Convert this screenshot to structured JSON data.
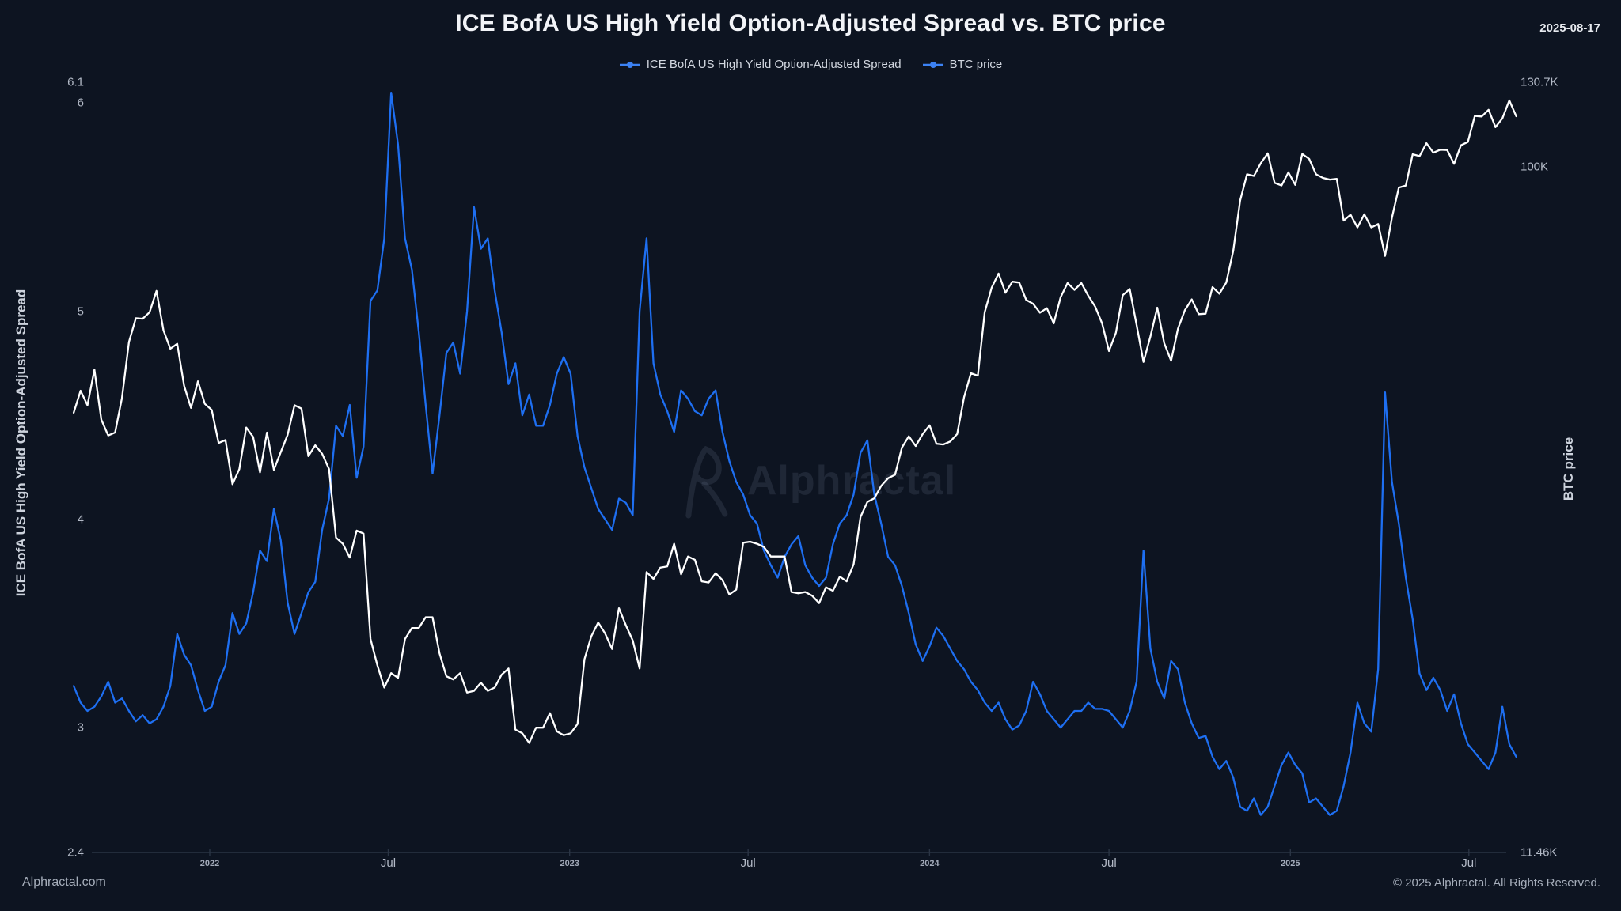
{
  "header": {
    "title": "ICE BofA US High Yield Option-Adjusted Spread vs. BTC price",
    "date_label": "2025-08-17"
  },
  "legend": [
    {
      "label": "ICE BofA US High Yield Option-Adjusted Spread",
      "marker_color": "#3c82f4"
    },
    {
      "label": "BTC price",
      "marker_color": "#3c82f4"
    }
  ],
  "watermark": {
    "text": "Alphractal",
    "logo": "alphractal-logo"
  },
  "footer": {
    "left": "Alphractal.com",
    "right": "© 2025 Alphractal. All Rights Reserved."
  },
  "colors": {
    "background": "#0d1421",
    "spread_line": "#1e6ff2",
    "btc_line": "#ffffff",
    "axis_line": "#2a3444",
    "axis_text": "#b3bac7",
    "watermark": "rgba(140,155,182,0.14)"
  },
  "chart_data": {
    "type": "line",
    "title": "ICE BofA US High Yield Option-Adjusted Spread vs. BTC price",
    "legend_position": "top",
    "grid": false,
    "x_axis": {
      "type": "datetime",
      "range": [
        "2021-08-16",
        "2025-08-18"
      ],
      "ticks": [
        {
          "label": "2022",
          "date": "2022-01-01",
          "style": "year"
        },
        {
          "label": "Jul",
          "date": "2022-07-01",
          "style": "month"
        },
        {
          "label": "2023",
          "date": "2023-01-01",
          "style": "year"
        },
        {
          "label": "Jul",
          "date": "2023-07-01",
          "style": "month"
        },
        {
          "label": "2024",
          "date": "2024-01-01",
          "style": "year"
        },
        {
          "label": "Jul",
          "date": "2024-07-01",
          "style": "month"
        },
        {
          "label": "2025",
          "date": "2025-01-01",
          "style": "year"
        },
        {
          "label": "Jul",
          "date": "2025-07-01",
          "style": "month"
        }
      ]
    },
    "y_axis_left": {
      "label": "ICE BofA US High Yield Option-Adjusted Spread",
      "scale": "linear",
      "min": 2.4,
      "max": 6.1,
      "tick_labels": [
        "6.1",
        "6",
        "5",
        "4",
        "3",
        "2.4"
      ],
      "tick_values": [
        6.1,
        6,
        5,
        4,
        3,
        2.4
      ]
    },
    "y_axis_right": {
      "label": "BTC price",
      "scale": "log",
      "min": 11460,
      "max": 130700,
      "tick_labels": [
        "130.7K",
        "100K",
        "11.46K"
      ],
      "tick_values": [
        130700,
        100000,
        11460
      ]
    },
    "series": [
      {
        "name": "ICE BofA US High Yield Option-Adjusted Spread",
        "axis": "left",
        "unit": "percent",
        "color": "#1e6ff2",
        "start": "2021-08-16",
        "interval_days": 7,
        "values": [
          3.2,
          3.12,
          3.08,
          3.1,
          3.15,
          3.22,
          3.12,
          3.14,
          3.08,
          3.03,
          3.06,
          3.02,
          3.04,
          3.1,
          3.2,
          3.45,
          3.35,
          3.3,
          3.18,
          3.08,
          3.1,
          3.22,
          3.3,
          3.55,
          3.45,
          3.5,
          3.65,
          3.85,
          3.8,
          4.05,
          3.9,
          3.6,
          3.45,
          3.55,
          3.65,
          3.7,
          3.95,
          4.1,
          4.45,
          4.4,
          4.55,
          4.2,
          4.35,
          5.05,
          5.1,
          5.35,
          6.05,
          5.8,
          5.35,
          5.2,
          4.9,
          4.55,
          4.22,
          4.5,
          4.8,
          4.85,
          4.7,
          5.0,
          5.5,
          5.3,
          5.35,
          5.1,
          4.9,
          4.65,
          4.75,
          4.5,
          4.6,
          4.45,
          4.45,
          4.55,
          4.7,
          4.78,
          4.7,
          4.4,
          4.25,
          4.15,
          4.05,
          4.0,
          3.95,
          4.1,
          4.08,
          4.02,
          5.0,
          5.35,
          4.75,
          4.6,
          4.52,
          4.42,
          4.62,
          4.58,
          4.52,
          4.5,
          4.58,
          4.62,
          4.42,
          4.28,
          4.18,
          4.12,
          4.02,
          3.98,
          3.85,
          3.78,
          3.72,
          3.82,
          3.88,
          3.92,
          3.78,
          3.72,
          3.68,
          3.72,
          3.88,
          3.98,
          4.02,
          4.12,
          4.32,
          4.38,
          4.12,
          3.98,
          3.82,
          3.78,
          3.68,
          3.55,
          3.4,
          3.32,
          3.39,
          3.48,
          3.44,
          3.38,
          3.32,
          3.28,
          3.22,
          3.18,
          3.12,
          3.08,
          3.12,
          3.04,
          2.99,
          3.01,
          3.08,
          3.22,
          3.16,
          3.08,
          3.04,
          3.0,
          3.04,
          3.08,
          3.08,
          3.12,
          3.09,
          3.09,
          3.08,
          3.04,
          3.0,
          3.08,
          3.22,
          3.85,
          3.38,
          3.22,
          3.14,
          3.32,
          3.28,
          3.12,
          3.02,
          2.95,
          2.96,
          2.86,
          2.8,
          2.84,
          2.76,
          2.62,
          2.6,
          2.66,
          2.58,
          2.62,
          2.72,
          2.82,
          2.88,
          2.82,
          2.78,
          2.64,
          2.66,
          2.62,
          2.58,
          2.6,
          2.72,
          2.88,
          3.12,
          3.02,
          2.98,
          3.28,
          4.61,
          4.18,
          3.98,
          3.72,
          3.52,
          3.26,
          3.18,
          3.24,
          3.18,
          3.08,
          3.16,
          3.02,
          2.92,
          2.88,
          2.84,
          2.8,
          2.88,
          3.1,
          2.92,
          2.86
        ]
      },
      {
        "name": "BTC price",
        "axis": "right",
        "unit": "kUSD",
        "color": "#ffffff",
        "start": "2021-08-16",
        "interval_days": 7,
        "values": [
          46.0,
          49.3,
          47.1,
          52.7,
          45.0,
          42.8,
          43.2,
          48.2,
          57.5,
          62.0,
          61.9,
          63.2,
          67.6,
          59.7,
          56.3,
          57.2,
          50.1,
          46.7,
          50.8,
          47.3,
          46.4,
          41.8,
          42.2,
          36.7,
          38.5,
          43.9,
          42.6,
          38.1,
          43.2,
          38.4,
          40.6,
          42.9,
          47.1,
          46.6,
          40.1,
          41.5,
          40.4,
          38.5,
          31.0,
          30.4,
          29.1,
          31.7,
          31.4,
          22.5,
          20.7,
          19.3,
          20.2,
          19.9,
          22.5,
          23.3,
          23.3,
          24.1,
          24.1,
          21.5,
          20.0,
          19.8,
          20.2,
          19.0,
          19.1,
          19.6,
          19.1,
          19.3,
          20.1,
          20.5,
          16.9,
          16.7,
          16.2,
          17.0,
          17.0,
          17.8,
          16.8,
          16.6,
          16.7,
          17.2,
          21.1,
          22.7,
          23.7,
          22.9,
          21.8,
          24.8,
          23.5,
          22.4,
          20.5,
          27.8,
          27.2,
          28.2,
          28.3,
          30.4,
          27.6,
          29.2,
          28.9,
          27.0,
          26.9,
          27.7,
          27.1,
          25.9,
          26.3,
          30.5,
          30.6,
          30.4,
          30.1,
          29.2,
          29.2,
          29.2,
          26.1,
          26.0,
          26.1,
          25.8,
          25.2,
          26.5,
          26.2,
          27.4,
          27.0,
          28.5,
          33.1,
          34.7,
          35.1,
          36.5,
          37.4,
          37.8,
          41.2,
          42.7,
          41.4,
          43.0,
          44.2,
          41.7,
          41.6,
          42.0,
          43.0,
          48.3,
          52.1,
          51.7,
          63.2,
          68.3,
          71.4,
          67.2,
          69.6,
          69.4,
          65.7,
          64.9,
          63.1,
          64.0,
          61.0,
          66.3,
          69.3,
          67.8,
          69.3,
          66.6,
          64.3,
          61.0,
          55.9,
          59.2,
          66.7,
          68.0,
          60.7,
          54.0,
          58.5,
          64.1,
          57.3,
          54.2,
          60.0,
          63.6,
          65.8,
          62.8,
          62.9,
          68.4,
          67.0,
          69.4,
          76.7,
          89.9,
          97.7,
          97.2,
          101.2,
          104.4,
          95.1,
          94.3,
          98.3,
          94.5,
          104.2,
          102.6,
          97.7,
          96.6,
          96.1,
          96.3,
          84.4,
          86.0,
          82.6,
          86.1,
          82.6,
          83.5,
          75.5,
          85.2,
          93.7,
          94.3,
          104.1,
          103.5,
          107.8,
          104.6,
          105.6,
          105.5,
          101.0,
          107.1,
          108.2,
          117.5,
          117.3,
          119.8,
          113.4,
          116.6,
          123.4,
          117.4
        ]
      }
    ]
  }
}
